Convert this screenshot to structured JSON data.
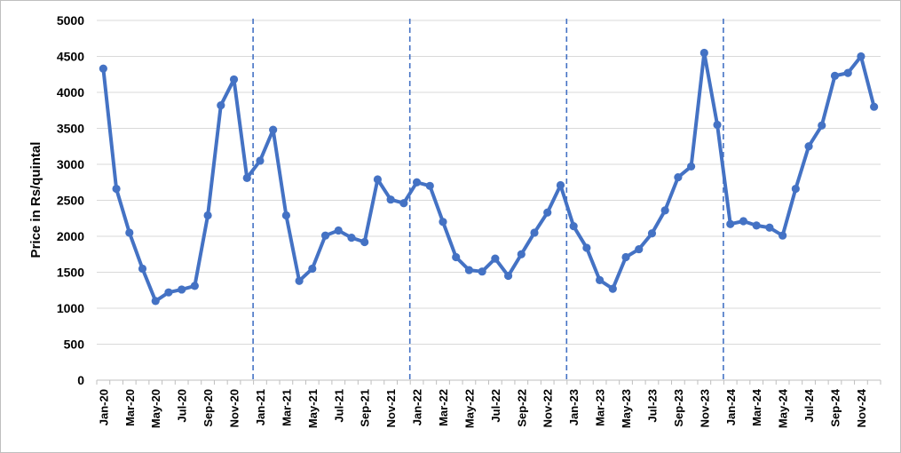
{
  "chart_data": {
    "type": "line",
    "title": "",
    "xlabel": "",
    "ylabel": "Price in Rs/quintal",
    "ylim": [
      0,
      5000
    ],
    "yticks": [
      "0",
      "500",
      "1000",
      "1500",
      "2000",
      "2500",
      "3000",
      "3500",
      "4000",
      "4500",
      "5000"
    ],
    "grid": "horizontal",
    "legend": "none",
    "line_color": "#4472C4",
    "divider_color": "#4472C4",
    "year_dividers_before": [
      "Jan-21",
      "Jan-22",
      "Jan-23",
      "Jan-24"
    ],
    "categories": [
      "Jan-20",
      "Feb-20",
      "Mar-20",
      "Apr-20",
      "May-20",
      "Jun-20",
      "Jul-20",
      "Aug-20",
      "Sep-20",
      "Oct-20",
      "Nov-20",
      "Dec-20",
      "Jan-21",
      "Feb-21",
      "Mar-21",
      "Apr-21",
      "May-21",
      "Jun-21",
      "Jul-21",
      "Aug-21",
      "Sep-21",
      "Oct-21",
      "Nov-21",
      "Dec-21",
      "Jan-22",
      "Feb-22",
      "Mar-22",
      "Apr-22",
      "May-22",
      "Jun-22",
      "Jul-22",
      "Aug-22",
      "Sep-22",
      "Oct-22",
      "Nov-22",
      "Dec-22",
      "Jan-23",
      "Feb-23",
      "Mar-23",
      "Apr-23",
      "May-23",
      "Jun-23",
      "Jul-23",
      "Aug-23",
      "Sep-23",
      "Oct-23",
      "Nov-23",
      "Dec-23",
      "Jan-24",
      "Feb-24",
      "Mar-24",
      "Apr-24",
      "May-24",
      "Jun-24",
      "Jul-24",
      "Aug-24",
      "Sep-24",
      "Oct-24",
      "Nov-24",
      "Dec-24"
    ],
    "tick_labels": [
      "Jan-20",
      "Mar-20",
      "May-20",
      "Jul-20",
      "Sep-20",
      "Nov-20",
      "Jan-21",
      "Mar-21",
      "May-21",
      "Jul-21",
      "Sep-21",
      "Nov-21",
      "Jan-22",
      "Mar-22",
      "May-22",
      "Jul-22",
      "Sep-22",
      "Nov-22",
      "Jan-23",
      "Mar-23",
      "May-23",
      "Jul-23",
      "Sep-23",
      "Nov-23",
      "Jan-24",
      "Mar-24",
      "May-24",
      "Jul-24",
      "Sep-24",
      "Nov-24"
    ],
    "series": [
      {
        "values": [
          4330,
          2660,
          2050,
          1550,
          1100,
          1220,
          1260,
          1310,
          2290,
          3820,
          4180,
          2810,
          3050,
          3480,
          2290,
          1380,
          1550,
          2010,
          2080,
          1980,
          1920,
          2790,
          2510,
          2460,
          2750,
          2700,
          2200,
          1710,
          1530,
          1510,
          1690,
          1450,
          1750,
          2050,
          2330,
          2710,
          2140,
          1840,
          1390,
          1270,
          1710,
          1820,
          2040,
          2360,
          2820,
          2970,
          4550,
          3550,
          2170,
          2210,
          2150,
          2120,
          2010,
          2660,
          3250,
          3540,
          4230,
          4270,
          4500,
          3800
        ]
      }
    ]
  }
}
